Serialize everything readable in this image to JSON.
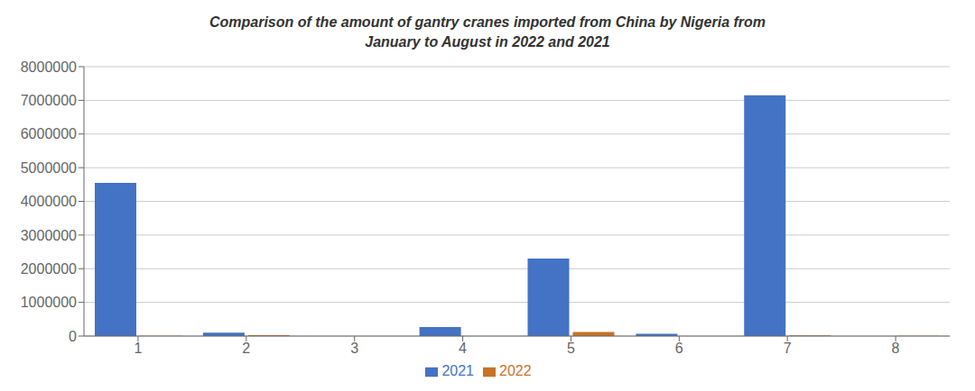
{
  "chart_data": {
    "type": "bar",
    "title": "Comparison of the amount of gantry cranes imported from China by Nigeria from\nJanuary to August in 2022 and 2021",
    "categories": [
      "1",
      "2",
      "3",
      "4",
      "5",
      "6",
      "7",
      "8"
    ],
    "series": [
      {
        "name": "2021",
        "color": "#4472c4",
        "values": [
          4550000,
          100000,
          0,
          270000,
          2300000,
          70000,
          7150000,
          0
        ]
      },
      {
        "name": "2022",
        "color": "#c77228",
        "values": [
          10000,
          30000,
          0,
          0,
          120000,
          0,
          20000,
          5000
        ]
      }
    ],
    "ylim": [
      0,
      8000000
    ],
    "yticks": [
      0,
      1000000,
      2000000,
      3000000,
      4000000,
      5000000,
      6000000,
      7000000,
      8000000
    ],
    "grid": true,
    "legend": "bottom"
  }
}
